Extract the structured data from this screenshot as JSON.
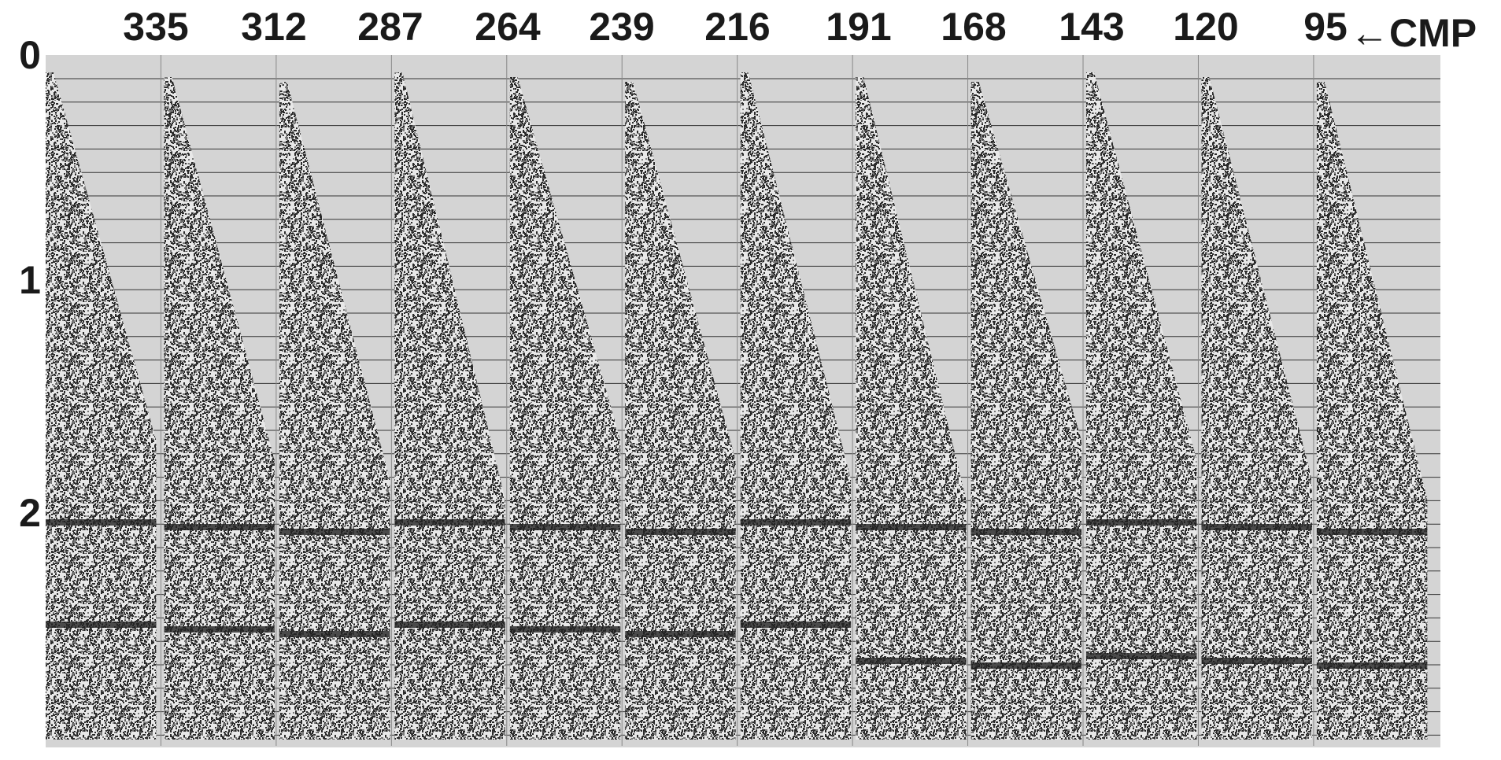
{
  "header": {
    "cmp_labels": [
      "335",
      "312",
      "287",
      "264",
      "239",
      "216",
      "191",
      "168",
      "143",
      "120",
      "95"
    ],
    "cmp_marker": "←CMP"
  },
  "axis": {
    "time_labels": [
      "0",
      "1",
      "2"
    ]
  }
}
